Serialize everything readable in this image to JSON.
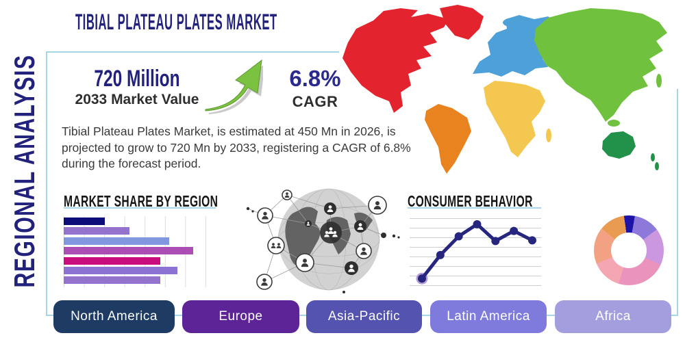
{
  "header": {
    "title": "TIBIAL PLATEAU PLATES MARKET"
  },
  "side_label": "REGIONAL ANALYSIS",
  "stats": {
    "market_value": "720 Million",
    "market_value_caption": "2033 Market Value",
    "cagr_value": "6.8%",
    "cagr_caption": "CAGR"
  },
  "description": "Tibial Plateau Plates Market, is estimated at 450 Mn in 2026, is projected to grow to 720 Mn by 2033, registering a CAGR of 6.8% during the forecast period.",
  "sections": {
    "bar_chart_title": "MARKET SHARE BY REGION",
    "line_chart_title": "CONSUMER BEHAVIOR"
  },
  "regions": [
    {
      "label": "North America",
      "color": "#1d3b63"
    },
    {
      "label": "Europe",
      "color": "#5c2496"
    },
    {
      "label": "Asia-Pacific",
      "color": "#5553b0"
    },
    {
      "label": "Latin America",
      "color": "#7e7bdc"
    },
    {
      "label": "Africa",
      "color": "#a39fdf"
    }
  ],
  "colors": {
    "title_navy": "#22227d",
    "panel_border": "#a5d6e6",
    "underline": "#a8d8ea",
    "growth_arrow_green": "#7cc241",
    "map": {
      "north_america": "#e3242e",
      "greenland": "#e3242e",
      "south_america": "#e8831f",
      "europe": "#4da0d8",
      "africa": "#f4c850",
      "asia": "#70c13d",
      "australia": "#229149"
    }
  },
  "icons": {
    "growth_arrow": "curved-up-right-arrow",
    "globe_graphic": "connected-people-network-globe"
  },
  "chart_data": [
    {
      "type": "bar",
      "title": "MARKET SHARE BY REGION",
      "orientation": "horizontal",
      "axis_labels": "none",
      "xlim": [
        0,
        100
      ],
      "grid": "vertical",
      "values": [
        29,
        46,
        74,
        91,
        68,
        80,
        68
      ],
      "colors": [
        "#0c0c78",
        "#9473cd",
        "#8198e0",
        "#ab4eb4",
        "#c90d7d",
        "#8b72d3",
        "#9473cd"
      ]
    },
    {
      "type": "line",
      "title": "CONSUMER BEHAVIOR",
      "axis_labels": "none",
      "grid": "horizontal",
      "x": [
        1,
        2,
        3,
        4,
        5,
        6,
        7
      ],
      "values": [
        10,
        45,
        73,
        91,
        66,
        81,
        67
      ],
      "ylim": [
        0,
        100
      ],
      "line_color": "#26267f",
      "first_point_halo_color": "#b39dd8"
    },
    {
      "type": "pie",
      "subtype": "donut",
      "title": "",
      "labels": "none",
      "start_angle_deg": -8,
      "segments": [
        {
          "value": 5,
          "color": "#1d13a6"
        },
        {
          "value": 12,
          "color": "#8d79da"
        },
        {
          "value": 17,
          "color": "#cb97de"
        },
        {
          "value": 23,
          "color": "#ea94bd"
        },
        {
          "value": 14,
          "color": "#f4a6b2"
        },
        {
          "value": 17,
          "color": "#f2a283"
        },
        {
          "value": 12,
          "color": "#e99b51"
        }
      ]
    }
  ]
}
